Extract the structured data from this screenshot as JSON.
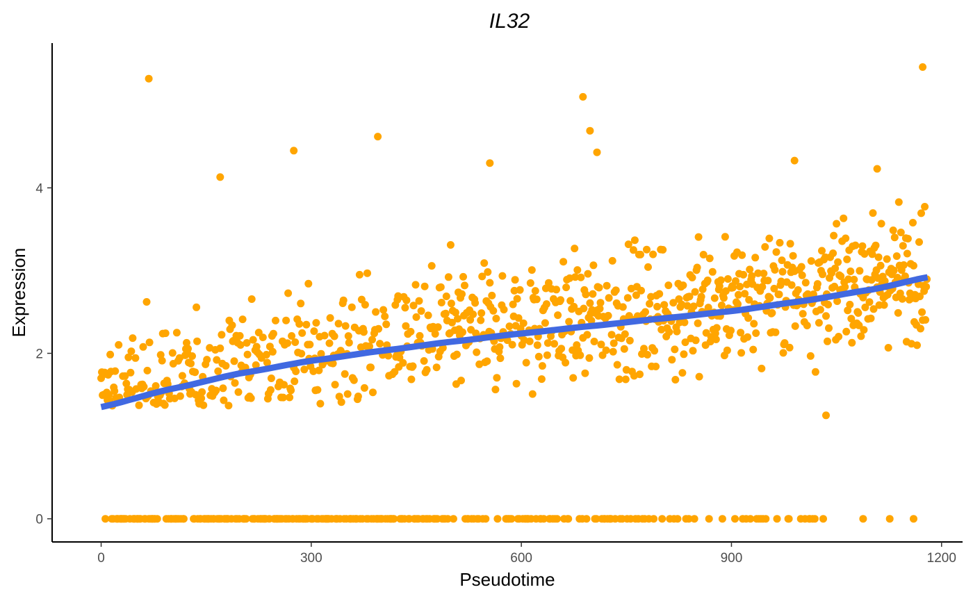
{
  "chart_data": {
    "type": "scatter",
    "title": "IL32",
    "xlabel": "Pseudotime",
    "ylabel": "Expression",
    "xlim": [
      -70,
      1230
    ],
    "ylim": [
      -0.28,
      5.75
    ],
    "x_ticks": [
      0,
      300,
      600,
      900,
      1200
    ],
    "y_ticks": [
      0,
      2,
      4
    ],
    "grid": false,
    "legend": "none",
    "point_color": "#FFA500",
    "trend_color": "#4169E1",
    "trend": {
      "type": "smooth",
      "x": [
        0,
        100,
        200,
        300,
        400,
        500,
        600,
        700,
        800,
        900,
        1000,
        1100,
        1180
      ],
      "y": [
        1.35,
        1.57,
        1.76,
        1.91,
        2.03,
        2.14,
        2.24,
        2.33,
        2.42,
        2.51,
        2.63,
        2.77,
        2.92
      ]
    },
    "highlight_points": [
      {
        "x": 68,
        "y": 5.32
      },
      {
        "x": 170,
        "y": 4.13
      },
      {
        "x": 275,
        "y": 4.45
      },
      {
        "x": 395,
        "y": 4.62
      },
      {
        "x": 555,
        "y": 4.3
      },
      {
        "x": 688,
        "y": 5.1
      },
      {
        "x": 698,
        "y": 4.69
      },
      {
        "x": 708,
        "y": 4.43
      },
      {
        "x": 990,
        "y": 4.33
      },
      {
        "x": 1108,
        "y": 4.23
      },
      {
        "x": 1173,
        "y": 5.46
      },
      {
        "x": 1035,
        "y": 1.25
      },
      {
        "x": 1088,
        "y": 0
      },
      {
        "x": 1160,
        "y": 0
      }
    ],
    "n_points_approx": 1180,
    "zero_fraction_approx": 0.2
  }
}
